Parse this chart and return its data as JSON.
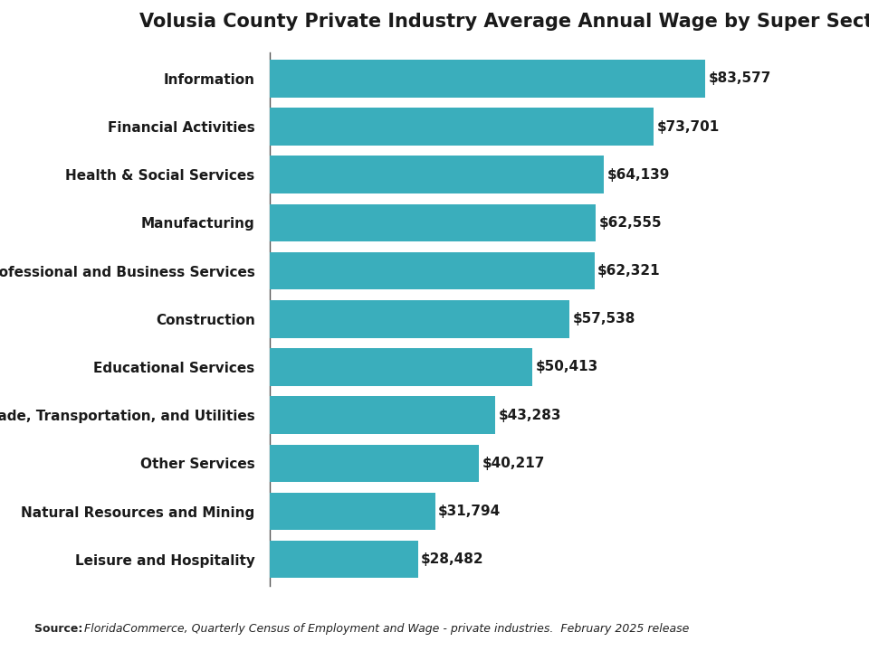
{
  "title": "Volusia County Private Industry Average Annual Wage by Super Sector",
  "categories": [
    "Information",
    "Financial Activities",
    "Health & Social Services",
    "Manufacturing",
    "Professional and Business Services",
    "Construction",
    "Educational Services",
    "Trade, Transportation, and Utilities",
    "Other Services",
    "Natural Resources and Mining",
    "Leisure and Hospitality"
  ],
  "values": [
    83577,
    73701,
    64139,
    62555,
    62321,
    57538,
    50413,
    43283,
    40217,
    31794,
    28482
  ],
  "bar_color": "#3aaebc",
  "label_color": "#1a1a1a",
  "background_color": "#ffffff",
  "title_fontsize": 15,
  "label_fontsize": 11,
  "value_fontsize": 11,
  "source_bold": "Source: ",
  "source_italic": "FloridaCommerce, Quarterly Census of Employment and Wage - private industries.  February 2025 release",
  "xlim": [
    0,
    95000
  ],
  "bar_height": 0.78
}
